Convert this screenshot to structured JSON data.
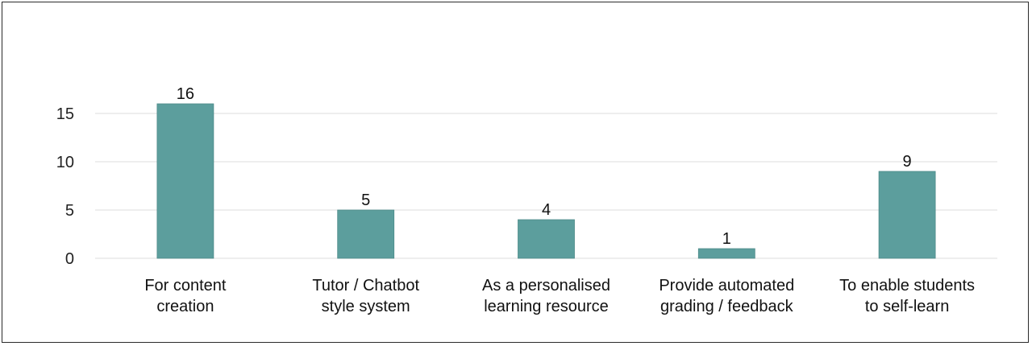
{
  "chart_data": {
    "type": "bar",
    "categories": [
      [
        "For content",
        "creation"
      ],
      [
        "Tutor / Chatbot",
        "style system"
      ],
      [
        "As a personalised",
        "learning resource"
      ],
      [
        "Provide automated",
        "grading / feedback"
      ],
      [
        "To enable students",
        "to self-learn"
      ]
    ],
    "values": [
      16,
      5,
      4,
      1,
      9
    ],
    "value_labels": [
      "16",
      "5",
      "4",
      "1",
      "9"
    ],
    "yticks": [
      0,
      5,
      10,
      15
    ],
    "ytick_labels": [
      "0",
      "5",
      "10",
      "15"
    ],
    "ylim": [
      0,
      20
    ],
    "title": "",
    "xlabel": "",
    "ylabel": "",
    "grid": true,
    "legend": "none",
    "colors": {
      "bar": "#5c9e9d",
      "grid": "#dcdcdc",
      "frame": "#2b2b2b"
    }
  }
}
